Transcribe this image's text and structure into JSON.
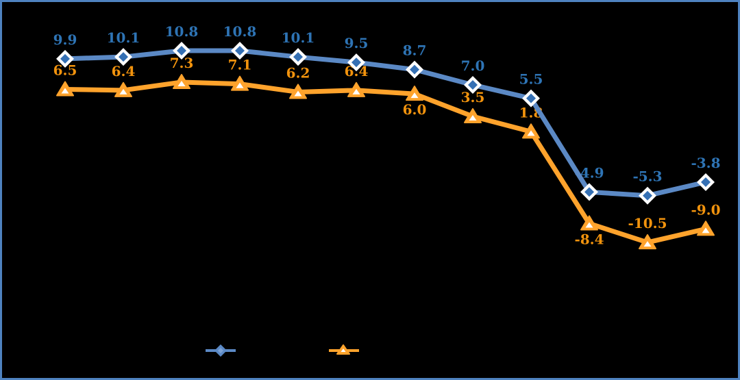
{
  "figure": {
    "background_color": "#000000",
    "frame_color": "#4E82BF"
  },
  "chart_data": {
    "type": "line",
    "title": "",
    "point_count": 12,
    "x_tick_labels_visible": false,
    "y_axis_visible": false,
    "grid": false,
    "series": [
      {
        "id": "blue-diamond",
        "marker": "diamond",
        "line_color": "#5B89C5",
        "marker_outline_color": "#FFFFFF",
        "marker_inner_color": "#3570B4",
        "label_color": "#2E74B5",
        "values": [
          9.9,
          10.1,
          10.8,
          10.8,
          10.1,
          9.5,
          8.7,
          7.0,
          5.5,
          -4.9,
          -5.3,
          -3.8
        ],
        "data_labels": [
          "9.9",
          "10.1",
          "10.8",
          "10.8",
          "10.1",
          "9.5",
          "8.7",
          "7.0",
          "5.5",
          "-4.9",
          "-5.3",
          "-3.8"
        ],
        "label_placement": [
          "above",
          "above",
          "above",
          "above",
          "above",
          "above",
          "above",
          "above",
          "above",
          "above",
          "above",
          "above"
        ]
      },
      {
        "id": "orange-triangle",
        "marker": "triangle-up",
        "line_color": "#FFA32C",
        "marker_outline_color": "#FFA32C",
        "marker_inner_color": "#FFFFFF",
        "label_color": "#F2930D",
        "values": [
          6.5,
          6.4,
          7.3,
          7.1,
          6.2,
          6.4,
          6.0,
          3.5,
          1.8,
          -8.4,
          -10.5,
          -9.0
        ],
        "data_labels": [
          "6.5",
          "6.4",
          "7.3",
          "7.1",
          "6.2",
          "6.4",
          "6.0",
          "3.5",
          "1.8",
          "-8.4",
          "-10.5",
          "-9.0"
        ],
        "label_placement": [
          "above",
          "above",
          "above",
          "above",
          "above",
          "above",
          "below",
          "above",
          "above",
          "below",
          "above",
          "above"
        ]
      }
    ],
    "legend": {
      "position": "bottom-center",
      "text_visible": false,
      "entries": [
        {
          "series": "blue-diamond",
          "marker": "diamond",
          "color": "#5B89C5"
        },
        {
          "series": "orange-triangle",
          "marker": "triangle-up",
          "color": "#FFA32C"
        }
      ]
    }
  }
}
